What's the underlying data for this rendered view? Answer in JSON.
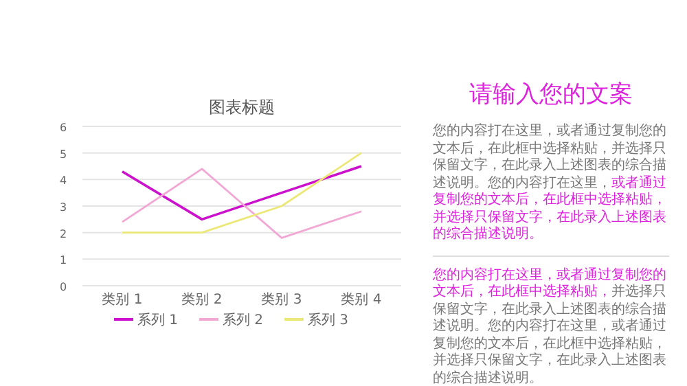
{
  "chart_data": {
    "type": "line",
    "title": "图表标题",
    "categories": [
      "类别 1",
      "类别 2",
      "类别 3",
      "类别 4"
    ],
    "series": [
      {
        "name": "系列 1",
        "color": "#cc11cc",
        "values": [
          4.3,
          2.5,
          3.5,
          4.5
        ]
      },
      {
        "name": "系列 2",
        "color": "#f2a8d4",
        "values": [
          2.4,
          4.4,
          1.8,
          2.8
        ]
      },
      {
        "name": "系列 3",
        "color": "#ece878",
        "values": [
          2,
          2,
          3,
          5
        ]
      }
    ],
    "ylim": [
      0,
      6
    ],
    "yticks": [
      0,
      1,
      2,
      3,
      4,
      5,
      6
    ],
    "grid": "y",
    "legend": "bottom",
    "marker": "none",
    "line_style": "solid",
    "annotations": [
      "请输入您的文案",
      "您的内容打在这里，或者通过复制您的文本后，在此框中选择粘贴，并选择只保留文字，在此录入上述图表的综合描述说明。您的内容打在这里，",
      "或者通过复制您的文本后，在此框中选择粘贴，并选择只保留文字，在此录入上述图表的综合描述说明。",
      "您的内容打在这里，或者通过复制您的文本后，在此框中选择粘贴，",
      "并选择只保留文字，在此录入上述图表的综合描述说明。您的内容打在这里，或者通过复制您的文本后，在此框中选择粘贴，并选择只保留文字，在此录入上述图表的综合描述说明。"
    ]
  }
}
